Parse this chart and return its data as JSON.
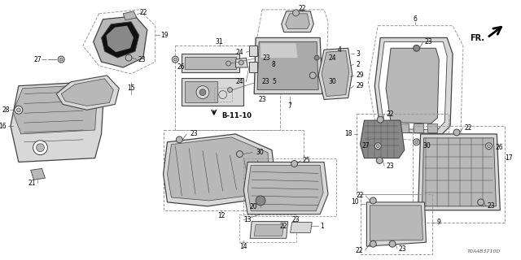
{
  "bg_color": "#ffffff",
  "diagram_code": "T0A4B3710D",
  "lc": "#444444",
  "dc": "#999999",
  "fc_light": "#d8d8d8",
  "fc_mid": "#b8b8b8",
  "fc_dark": "#888888",
  "fc_black": "#111111"
}
